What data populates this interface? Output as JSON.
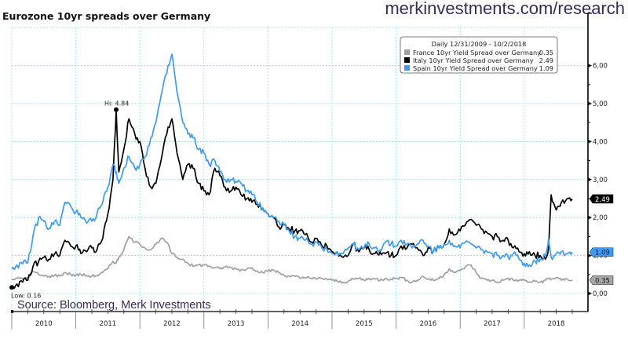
{
  "header": {
    "title": "Eurozone 10yr spreads over Germany",
    "brand_url": "merkinvestments.com/research",
    "source": "Source: Bloomberg, Merk Investments"
  },
  "chart_data": {
    "type": "line",
    "title": "Eurozone 10yr spreads over Germany",
    "xlabel": "",
    "ylabel": "",
    "x_range": [
      "2009-12-31",
      "2018-10-02"
    ],
    "ylim": [
      -0.45,
      6.8
    ],
    "y_ticks": [
      "0,00",
      "1,00",
      "2,00",
      "3,00",
      "4,00",
      "5,00",
      "6,00"
    ],
    "y_tick_values": [
      0,
      1,
      2,
      3,
      4,
      5,
      6
    ],
    "x_tick_labels": [
      "2010",
      "2011",
      "2012",
      "2013",
      "2014",
      "2015",
      "2016",
      "2017",
      "2018"
    ],
    "grid": true,
    "legend_position": "top-right",
    "legend": {
      "header": "Daily 12/31/2009 - 10/2/2018",
      "entries": [
        {
          "label": "France 10yr Yield Spread over Germany",
          "last": "0.35",
          "color": "#a0a0a0"
        },
        {
          "label": "Italy 10yr Yield Spread over Germany",
          "last": "2.49",
          "color": "#000000"
        },
        {
          "label": "Spain 10yr Yield Spread over Germany",
          "last": "1.09",
          "color": "#3d9bf0"
        }
      ]
    },
    "annotations": [
      {
        "text": "Hi: 4.84",
        "series": "Italy",
        "x": 2011.63,
        "y": 4.84
      },
      {
        "text": "Low: 0.16",
        "series": "Italy",
        "x": 2010.0,
        "y": 0.16
      }
    ],
    "last_value_tags": [
      {
        "series": "Italy",
        "label": "2.49",
        "value": 2.49,
        "bg": "#000000",
        "fg": "#ffffff"
      },
      {
        "series": "Spain",
        "label": "1.09",
        "value": 1.09,
        "bg": "#3d9bf0",
        "fg": "#1a1a4a"
      },
      {
        "series": "France",
        "label": "0.35",
        "value": 0.35,
        "bg": "#a8a8a8",
        "fg": "#111111"
      }
    ],
    "x": [
      2010.0,
      2010.08,
      2010.17,
      2010.25,
      2010.33,
      2010.42,
      2010.5,
      2010.58,
      2010.67,
      2010.75,
      2010.83,
      2010.92,
      2011.0,
      2011.08,
      2011.17,
      2011.25,
      2011.33,
      2011.42,
      2011.5,
      2011.58,
      2011.63,
      2011.67,
      2011.75,
      2011.83,
      2011.92,
      2012.0,
      2012.08,
      2012.17,
      2012.25,
      2012.33,
      2012.42,
      2012.5,
      2012.58,
      2012.67,
      2012.75,
      2012.83,
      2012.92,
      2013.0,
      2013.08,
      2013.17,
      2013.25,
      2013.33,
      2013.42,
      2013.5,
      2013.58,
      2013.67,
      2013.75,
      2013.83,
      2013.92,
      2014.0,
      2014.08,
      2014.17,
      2014.25,
      2014.33,
      2014.42,
      2014.5,
      2014.58,
      2014.67,
      2014.75,
      2014.83,
      2014.92,
      2015.0,
      2015.08,
      2015.17,
      2015.25,
      2015.33,
      2015.42,
      2015.5,
      2015.58,
      2015.67,
      2015.75,
      2015.83,
      2015.92,
      2016.0,
      2016.08,
      2016.17,
      2016.25,
      2016.33,
      2016.42,
      2016.5,
      2016.58,
      2016.67,
      2016.75,
      2016.83,
      2016.92,
      2017.0,
      2017.08,
      2017.17,
      2017.25,
      2017.33,
      2017.42,
      2017.5,
      2017.58,
      2017.67,
      2017.75,
      2017.83,
      2017.92,
      2018.0,
      2018.08,
      2018.17,
      2018.25,
      2018.33,
      2018.38,
      2018.42,
      2018.5,
      2018.58,
      2018.67,
      2018.75
    ],
    "series": [
      {
        "name": "France",
        "color": "#a0a0a0",
        "values": [
          0.37,
          0.4,
          0.38,
          0.42,
          0.58,
          0.5,
          0.46,
          0.45,
          0.48,
          0.46,
          0.55,
          0.5,
          0.48,
          0.5,
          0.47,
          0.46,
          0.47,
          0.55,
          0.65,
          0.85,
          0.8,
          0.95,
          1.15,
          1.5,
          1.35,
          1.3,
          1.2,
          1.15,
          1.3,
          1.45,
          1.35,
          1.05,
          0.95,
          0.9,
          0.8,
          0.72,
          0.75,
          0.75,
          0.72,
          0.68,
          0.65,
          0.7,
          0.68,
          0.65,
          0.62,
          0.65,
          0.68,
          0.6,
          0.55,
          0.58,
          0.62,
          0.55,
          0.48,
          0.46,
          0.45,
          0.4,
          0.42,
          0.4,
          0.38,
          0.4,
          0.38,
          0.35,
          0.32,
          0.3,
          0.32,
          0.38,
          0.4,
          0.35,
          0.4,
          0.38,
          0.35,
          0.4,
          0.38,
          0.4,
          0.42,
          0.35,
          0.3,
          0.35,
          0.45,
          0.38,
          0.35,
          0.4,
          0.5,
          0.65,
          0.55,
          0.6,
          0.7,
          0.75,
          0.55,
          0.4,
          0.35,
          0.35,
          0.3,
          0.35,
          0.4,
          0.35,
          0.35,
          0.35,
          0.3,
          0.32,
          0.3,
          0.35,
          0.4,
          0.38,
          0.42,
          0.35,
          0.38,
          0.35
        ]
      },
      {
        "name": "Italy",
        "color": "#000000",
        "values": [
          0.16,
          0.25,
          0.3,
          0.35,
          0.7,
          0.85,
          0.95,
          0.9,
          1.05,
          1.0,
          1.4,
          1.25,
          1.25,
          1.05,
          1.1,
          1.2,
          1.15,
          1.45,
          2.1,
          3.0,
          4.84,
          3.2,
          3.8,
          4.6,
          4.2,
          4.0,
          3.3,
          2.8,
          2.9,
          3.5,
          4.2,
          4.6,
          3.7,
          3.0,
          3.4,
          3.3,
          2.9,
          2.7,
          2.6,
          3.3,
          3.1,
          2.8,
          2.7,
          2.8,
          2.6,
          2.5,
          2.4,
          2.35,
          2.25,
          2.1,
          2.0,
          1.75,
          1.8,
          1.7,
          1.65,
          1.65,
          1.55,
          1.35,
          1.45,
          1.3,
          1.25,
          1.1,
          1.1,
          0.95,
          1.0,
          1.3,
          1.1,
          1.2,
          1.15,
          1.05,
          1.1,
          1.05,
          1.0,
          1.0,
          1.25,
          1.2,
          1.3,
          1.2,
          1.0,
          1.2,
          1.1,
          1.2,
          1.3,
          1.7,
          1.55,
          1.65,
          1.8,
          1.95,
          1.8,
          1.7,
          1.6,
          1.5,
          1.5,
          1.4,
          1.4,
          1.2,
          1.1,
          1.05,
          1.1,
          1.0,
          1.0,
          0.9,
          1.2,
          2.6,
          2.2,
          2.4,
          2.5,
          2.49
        ]
      },
      {
        "name": "Spain",
        "color": "#3d9bf0",
        "values": [
          0.65,
          0.75,
          0.78,
          0.8,
          1.5,
          2.0,
          1.9,
          1.7,
          1.9,
          1.8,
          2.4,
          2.3,
          2.15,
          2.0,
          1.85,
          1.9,
          2.1,
          2.4,
          2.8,
          3.4,
          3.2,
          2.9,
          3.3,
          3.6,
          3.3,
          3.4,
          3.6,
          4.1,
          4.5,
          5.2,
          5.8,
          6.3,
          5.3,
          4.5,
          4.2,
          4.1,
          3.8,
          3.7,
          3.4,
          3.5,
          3.2,
          3.0,
          3.0,
          2.95,
          2.9,
          2.7,
          2.6,
          2.4,
          2.25,
          2.1,
          2.0,
          1.9,
          1.8,
          1.65,
          1.5,
          1.45,
          1.4,
          1.3,
          1.35,
          1.25,
          1.15,
          1.05,
          1.1,
          1.05,
          1.2,
          1.3,
          1.15,
          1.2,
          1.3,
          1.2,
          1.15,
          1.35,
          1.3,
          1.25,
          1.4,
          1.3,
          1.2,
          1.3,
          1.4,
          1.25,
          1.1,
          1.2,
          1.3,
          1.4,
          1.25,
          1.2,
          1.35,
          1.3,
          1.2,
          1.15,
          1.1,
          1.05,
          1.0,
          1.0,
          0.95,
          1.05,
          0.9,
          0.8,
          0.75,
          0.85,
          0.9,
          1.0,
          1.45,
          0.95,
          1.05,
          1.1,
          1.05,
          1.09
        ]
      }
    ]
  }
}
